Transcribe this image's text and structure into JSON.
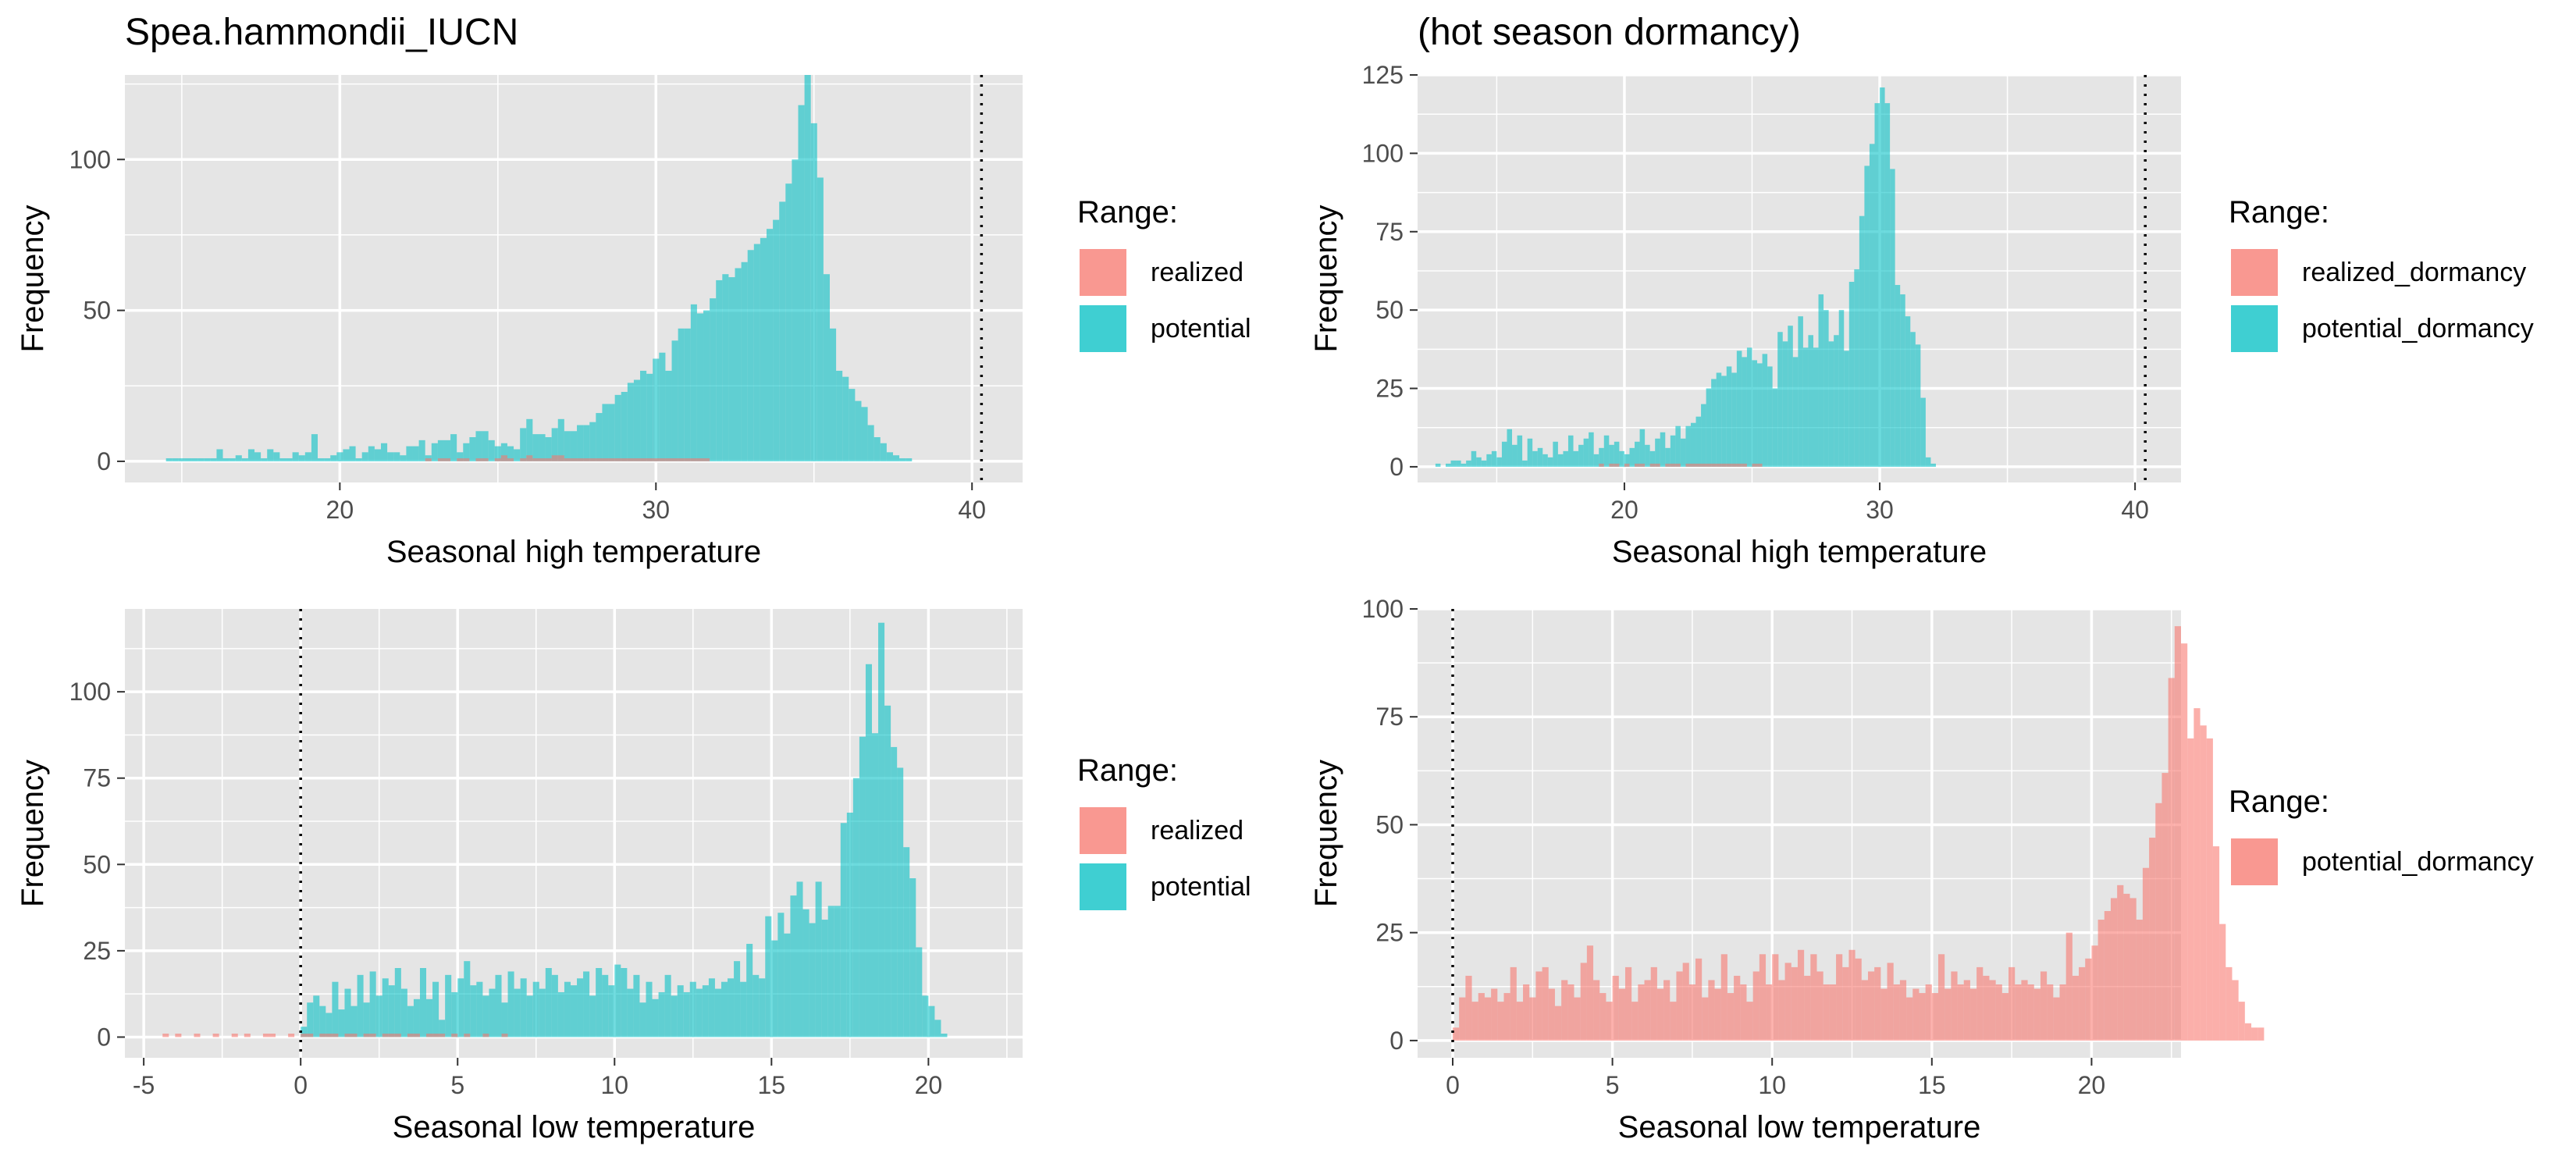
{
  "colors": {
    "realized": "#F8766D",
    "potential": "#00BFC4",
    "panel_bg": "#E5E5E5",
    "grid": "#FFFFFF",
    "axis_text": "#4D4D4D"
  },
  "titles": {
    "top_left": "Spea.hammondii_IUCN",
    "top_right": "(hot season dormancy)"
  },
  "legends": {
    "top_left": {
      "title": "Range:",
      "items": [
        {
          "label": "realized",
          "color": "#F8766D"
        },
        {
          "label": "potential",
          "color": "#00BFC4"
        }
      ]
    },
    "top_right": {
      "title": "Range:",
      "items": [
        {
          "label": "realized_dormancy",
          "color": "#F8766D"
        },
        {
          "label": "potential_dormancy",
          "color": "#00BFC4"
        }
      ]
    },
    "bottom_left": {
      "title": "Range:",
      "items": [
        {
          "label": "realized",
          "color": "#F8766D"
        },
        {
          "label": "potential",
          "color": "#00BFC4"
        }
      ]
    },
    "bottom_right": {
      "title": "Range:",
      "items": [
        {
          "label": "potential_dormancy",
          "color": "#F8766D"
        }
      ]
    }
  },
  "chart_data": [
    {
      "id": "top_left",
      "type": "bar",
      "title": "Spea.hammondii_IUCN",
      "xlabel": "Seasonal high temperature",
      "ylabel": "Frequency",
      "xlim": [
        13.2,
        41.6
      ],
      "ylim": [
        -7,
        128
      ],
      "xticks": [
        20,
        30,
        40
      ],
      "yticks": [
        0,
        50,
        100
      ],
      "ref_line_x": 40.3,
      "bin_start": 14.5,
      "bin_width": 0.2,
      "series": [
        {
          "name": "potential",
          "color": "#00BFC4",
          "values": [
            1,
            1,
            1,
            1,
            1,
            1,
            1,
            1,
            4,
            1,
            1,
            2,
            1,
            4,
            3,
            1,
            4,
            3,
            1,
            1,
            3,
            2,
            3,
            9,
            1,
            1,
            2,
            3,
            4,
            5,
            1,
            3,
            5,
            4,
            6,
            3,
            3,
            2,
            5,
            5,
            7,
            2,
            6,
            7,
            7,
            9,
            3,
            6,
            8,
            10,
            10,
            7,
            5,
            6,
            5,
            4,
            11,
            14,
            9,
            9,
            8,
            11,
            14,
            10,
            10,
            12,
            12,
            13,
            16,
            19,
            19,
            22,
            23,
            26,
            27,
            30,
            29,
            34,
            36,
            30,
            40,
            44,
            44,
            52,
            49,
            50,
            54,
            60,
            62,
            61,
            64,
            66,
            70,
            72,
            74,
            77,
            80,
            86,
            92,
            100,
            118,
            128,
            112,
            94,
            62,
            44,
            30,
            28,
            24,
            20,
            18,
            12,
            8,
            6,
            3,
            2,
            1,
            1
          ]
        },
        {
          "name": "realized",
          "color": "#F8766D",
          "values": [
            0,
            0,
            0,
            0,
            0,
            0,
            0,
            0,
            0,
            0,
            0,
            0,
            0,
            0,
            0,
            0,
            0,
            0,
            0,
            0,
            0,
            0,
            0,
            0,
            0,
            0,
            0,
            0,
            0,
            0,
            0,
            0,
            0,
            0,
            0,
            0,
            0,
            0,
            0,
            0,
            0,
            1,
            0,
            1,
            1,
            0,
            1,
            1,
            0,
            1,
            1,
            0,
            1,
            2,
            1,
            0,
            1,
            2,
            1,
            1,
            1,
            2,
            2,
            1,
            1,
            1,
            1,
            1,
            1,
            1,
            1,
            1,
            1,
            1,
            1,
            1,
            1,
            1,
            1,
            1,
            1,
            1,
            1,
            1,
            1,
            1,
            0,
            0,
            0,
            0,
            0,
            0,
            0,
            0,
            0,
            0,
            0,
            0,
            0,
            0,
            0,
            0,
            0,
            0,
            0,
            0,
            0,
            0,
            0,
            0,
            0,
            0,
            0,
            0,
            0,
            0,
            0,
            0
          ]
        }
      ]
    },
    {
      "id": "top_right",
      "type": "bar",
      "title": "(hot season dormancy)",
      "xlabel": "Seasonal high temperature",
      "ylabel": "Frequency",
      "xlim": [
        11.9,
        41.8
      ],
      "ylim": [
        -5,
        125
      ],
      "xticks": [
        20,
        30,
        40
      ],
      "yticks": [
        0,
        25,
        50,
        75,
        100,
        125
      ],
      "ref_line_x": 40.4,
      "bin_start": 12.6,
      "bin_width": 0.2,
      "series": [
        {
          "name": "potential_dormancy",
          "color": "#00BFC4",
          "values": [
            1,
            0,
            1,
            2,
            2,
            1,
            2,
            5,
            3,
            2,
            4,
            5,
            3,
            8,
            12,
            7,
            10,
            2,
            9,
            5,
            6,
            4,
            3,
            8,
            4,
            5,
            10,
            5,
            7,
            9,
            11,
            4,
            6,
            10,
            7,
            8,
            5,
            4,
            6,
            8,
            12,
            7,
            5,
            9,
            11,
            6,
            10,
            13,
            9,
            13,
            14,
            16,
            20,
            25,
            28,
            30,
            29,
            32,
            30,
            37,
            35,
            38,
            34,
            33,
            36,
            32,
            25,
            43,
            40,
            45,
            35,
            48,
            38,
            42,
            38,
            55,
            50,
            40,
            42,
            50,
            37,
            59,
            63,
            80,
            96,
            103,
            116,
            121,
            116,
            95,
            58,
            55,
            48,
            43,
            39,
            22,
            3,
            1
          ]
        },
        {
          "name": "realized_dormancy",
          "color": "#F8766D",
          "values": [
            0,
            0,
            0,
            0,
            0,
            0,
            0,
            0,
            0,
            0,
            0,
            0,
            0,
            0,
            0,
            0,
            0,
            0,
            0,
            0,
            0,
            0,
            0,
            0,
            0,
            0,
            0,
            0,
            0,
            0,
            0,
            0,
            1,
            0,
            1,
            1,
            0,
            1,
            0,
            1,
            1,
            0,
            1,
            1,
            0,
            1,
            1,
            1,
            0,
            1,
            1,
            1,
            1,
            1,
            1,
            1,
            1,
            1,
            1,
            1,
            1,
            0,
            1,
            1,
            0,
            0,
            0,
            0,
            0,
            0,
            0,
            0,
            0,
            0,
            0,
            0,
            0,
            0,
            0,
            0,
            0,
            0,
            0,
            0,
            0,
            0,
            0,
            0,
            0,
            0,
            0,
            0,
            0,
            0,
            0,
            0,
            0,
            0
          ]
        }
      ]
    },
    {
      "id": "bottom_left",
      "type": "bar",
      "title": "",
      "xlabel": "Seasonal low temperature",
      "ylabel": "Frequency",
      "xlim": [
        -5.6,
        23.0
      ],
      "ylim": [
        -6,
        124
      ],
      "xticks": [
        -5,
        0,
        5,
        10,
        15,
        20
      ],
      "yticks": [
        0,
        25,
        50,
        75,
        100
      ],
      "ref_line_x": 0,
      "bin_start": -4.4,
      "bin_width": 0.2,
      "series": [
        {
          "name": "potential",
          "color": "#00BFC4",
          "values": [
            0,
            0,
            0,
            0,
            0,
            0,
            0,
            0,
            0,
            0,
            0,
            0,
            0,
            0,
            0,
            0,
            0,
            0,
            0,
            0,
            0,
            0,
            3,
            10,
            12,
            9,
            7,
            16,
            8,
            14,
            9,
            18,
            10,
            19,
            12,
            17,
            15,
            20,
            14,
            9,
            11,
            20,
            11,
            16,
            5,
            18,
            13,
            17,
            22,
            15,
            16,
            12,
            14,
            18,
            10,
            19,
            14,
            17,
            12,
            16,
            14,
            20,
            18,
            13,
            16,
            15,
            17,
            19,
            12,
            20,
            18,
            15,
            21,
            20,
            14,
            18,
            10,
            16,
            11,
            13,
            18,
            12,
            15,
            13,
            16,
            14,
            15,
            17,
            14,
            16,
            17,
            22,
            16,
            27,
            18,
            17,
            35,
            28,
            36,
            30,
            41,
            45,
            37,
            33,
            45,
            34,
            38,
            38,
            62,
            65,
            75,
            87,
            108,
            88,
            120,
            96,
            84,
            78,
            55,
            46,
            26,
            12,
            9,
            5,
            1
          ]
        },
        {
          "name": "realized",
          "color": "#F8766D",
          "values": [
            1,
            0,
            1,
            0,
            0,
            1,
            0,
            0,
            1,
            0,
            0,
            1,
            0,
            1,
            0,
            0,
            1,
            1,
            0,
            0,
            1,
            0,
            1,
            1,
            0,
            1,
            1,
            1,
            0,
            1,
            1,
            0,
            1,
            1,
            0,
            1,
            1,
            1,
            0,
            1,
            1,
            0,
            1,
            1,
            1,
            0,
            1,
            0,
            1,
            0,
            0,
            1,
            0,
            0,
            1,
            0,
            0,
            0,
            0,
            0,
            0,
            0,
            0,
            0,
            0,
            0,
            0,
            0,
            0,
            0,
            0,
            0,
            0,
            0,
            0,
            0,
            0,
            0,
            0,
            0,
            0,
            0,
            0,
            0,
            0,
            0,
            0,
            0,
            0,
            0,
            0,
            0,
            0,
            0,
            0,
            0,
            0,
            0,
            0,
            0,
            0,
            0,
            0,
            0,
            0,
            0,
            0,
            0,
            0,
            0,
            0,
            0,
            0,
            0,
            0,
            0,
            0,
            0,
            0,
            0,
            0,
            0,
            0,
            0,
            0
          ]
        }
      ]
    },
    {
      "id": "bottom_right",
      "type": "bar",
      "title": "",
      "xlabel": "Seasonal low temperature",
      "ylabel": "Frequency",
      "xlim": [
        -1.1,
        22.8
      ],
      "ylim": [
        -4,
        100
      ],
      "xticks": [
        0,
        5,
        10,
        15,
        20
      ],
      "yticks": [
        0,
        25,
        50,
        75,
        100
      ],
      "ref_line_x": 0,
      "bin_start": 0,
      "bin_width": 0.2,
      "series": [
        {
          "name": "potential_dormancy",
          "color": "#F8766D",
          "values": [
            3,
            10,
            15,
            9,
            11,
            10,
            12,
            9,
            11,
            17,
            9,
            13,
            10,
            16,
            17,
            12,
            8,
            14,
            13,
            10,
            18,
            22,
            14,
            11,
            9,
            15,
            12,
            17,
            9,
            13,
            14,
            17,
            12,
            14,
            9,
            16,
            18,
            13,
            19,
            10,
            14,
            12,
            20,
            11,
            15,
            13,
            9,
            16,
            20,
            13,
            20,
            14,
            18,
            17,
            21,
            15,
            20,
            16,
            13,
            13,
            20,
            17,
            21,
            19,
            14,
            16,
            17,
            12,
            18,
            13,
            14,
            10,
            12,
            11,
            13,
            11,
            20,
            12,
            16,
            13,
            14,
            12,
            17,
            15,
            14,
            13,
            11,
            17,
            13,
            14,
            13,
            12,
            16,
            13,
            10,
            13,
            25,
            15,
            17,
            19,
            22,
            28,
            30,
            33,
            36,
            34,
            33,
            28,
            40,
            47,
            55,
            62,
            84,
            96,
            92,
            70,
            77,
            73,
            70,
            45,
            27,
            17,
            14,
            9,
            4,
            3,
            3
          ]
        }
      ]
    }
  ]
}
